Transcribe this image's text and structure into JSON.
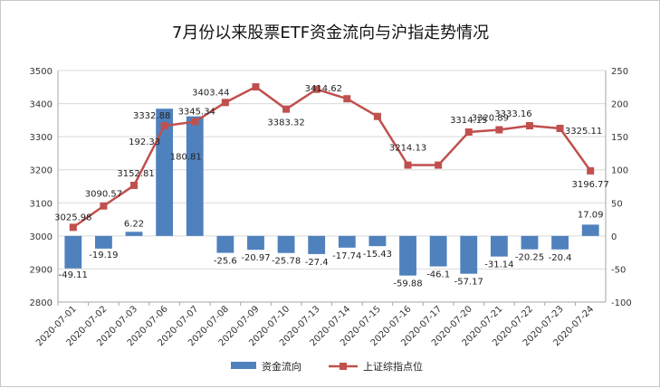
{
  "chart_data": {
    "type": "bar+line",
    "title": "7月份以来股票ETF资金流向与沪指走势情况",
    "categories": [
      "2020-07-01",
      "2020-07-02",
      "2020-07-03",
      "2020-07-06",
      "2020-07-07",
      "2020-07-08",
      "2020-07-09",
      "2020-07-10",
      "2020-07-13",
      "2020-07-14",
      "2020-07-15",
      "2020-07-16",
      "2020-07-17",
      "2020-07-20",
      "2020-07-21",
      "2020-07-22",
      "2020-07-23",
      "2020-07-24"
    ],
    "series": [
      {
        "name": "资金流向",
        "type": "bar",
        "axis": "right",
        "color": "#4f81bd",
        "values": [
          -49.11,
          -19.19,
          6.22,
          192.33,
          180.81,
          -25.6,
          -20.97,
          -25.78,
          -27.4,
          -17.74,
          -15.43,
          -59.88,
          -46.1,
          -57.17,
          -31.14,
          -20.25,
          -20.4,
          17.09
        ]
      },
      {
        "name": "上证综指点位",
        "type": "line",
        "axis": "left",
        "color": "#c0504d",
        "values": [
          3025.98,
          3090.57,
          3152.81,
          3332.88,
          3345.34,
          3403.44,
          3450.59,
          3383.32,
          3443.29,
          3414.62,
          3361.3,
          3214.13,
          3214.13,
          3314.15,
          3320.89,
          3333.16,
          3325.11,
          3196.77
        ]
      }
    ],
    "labels": {
      "bars": [
        "-49.11",
        "-19.19",
        "6.22",
        "192.33",
        "180.81",
        "-25.6",
        "-20.97",
        "-25.78",
        "-27.4",
        "-17.74",
        "-15.43",
        "-59.88",
        "-46.1",
        "-57.17",
        "-31.14",
        "-20.25",
        "-20.4",
        "17.09"
      ],
      "line": [
        "3025.98",
        "3090.57",
        "3152.81",
        "3332.88",
        "3345.34",
        "3403.44",
        "",
        "3383.32",
        "",
        "3414.62",
        "",
        "3214.13",
        "",
        "3314.15",
        "3320.89",
        "3333.16",
        "3325.11",
        "3196.77"
      ]
    },
    "y_left": {
      "min": 2800,
      "max": 3500,
      "ticks": [
        2800,
        2900,
        3000,
        3100,
        3200,
        3300,
        3400,
        3500
      ]
    },
    "y_right": {
      "min": -100,
      "max": 250,
      "ticks": [
        -100,
        -50,
        0,
        50,
        100,
        150,
        200,
        250
      ]
    },
    "grid": true,
    "legend": "bottom"
  }
}
